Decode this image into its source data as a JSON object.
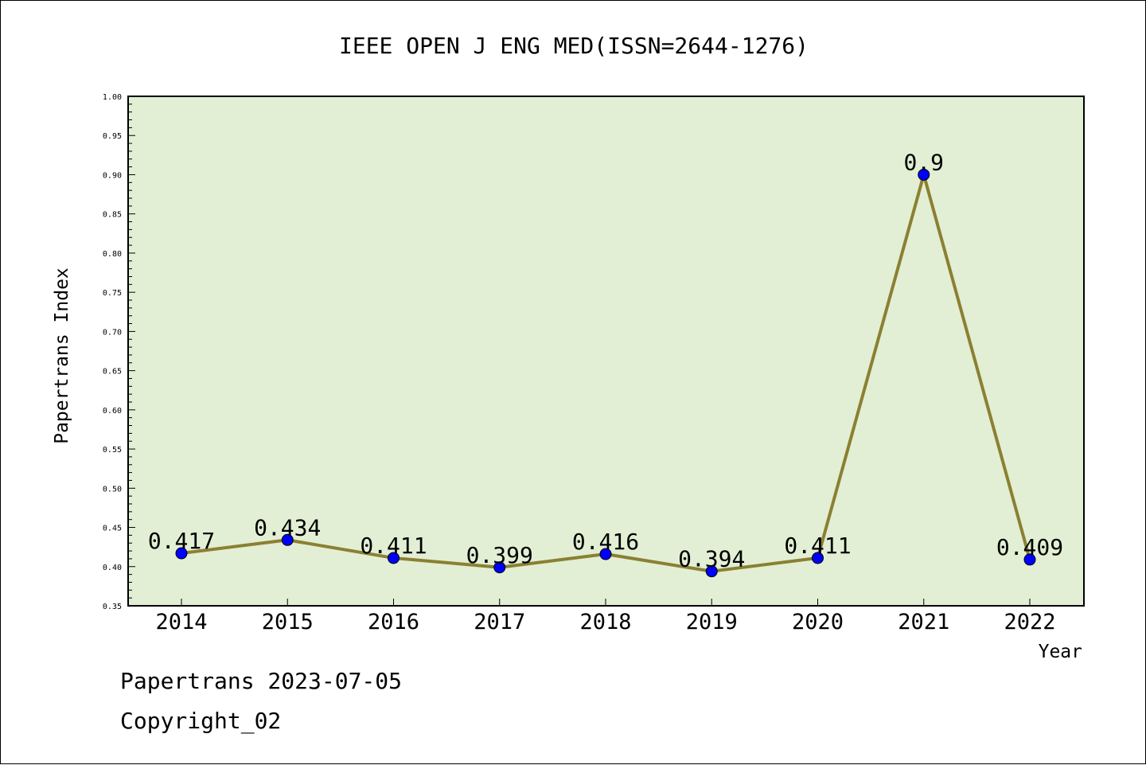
{
  "chart_data": {
    "type": "line",
    "title": "IEEE OPEN J ENG MED(ISSN=2644-1276)",
    "xlabel": "Year",
    "ylabel": "Papertrans Index",
    "categories": [
      "2014",
      "2015",
      "2016",
      "2017",
      "2018",
      "2019",
      "2020",
      "2021",
      "2022"
    ],
    "series": [
      {
        "values": [
          0.417,
          0.434,
          0.411,
          0.399,
          0.416,
          0.394,
          0.411,
          0.9,
          0.409
        ],
        "labels": [
          "0.417",
          "0.434",
          "0.411",
          "0.399",
          "0.416",
          "0.394",
          "0.411",
          "0.9",
          "0.409"
        ]
      }
    ],
    "ylim": [
      0.35,
      1.0
    ],
    "yticks": [
      "0.35",
      "0.40",
      "0.45",
      "0.50",
      "0.55",
      "0.60",
      "0.65",
      "0.70",
      "0.75",
      "0.80",
      "0.85",
      "0.90",
      "0.95",
      "1.00"
    ],
    "grid": false,
    "legend": "none",
    "colors": {
      "plot_background": "#e2efd4",
      "line": "#8b8032",
      "marker": "#0000ff"
    }
  },
  "footer": {
    "line1": "Papertrans 2023-07-05",
    "line2": "Copyright_02"
  }
}
